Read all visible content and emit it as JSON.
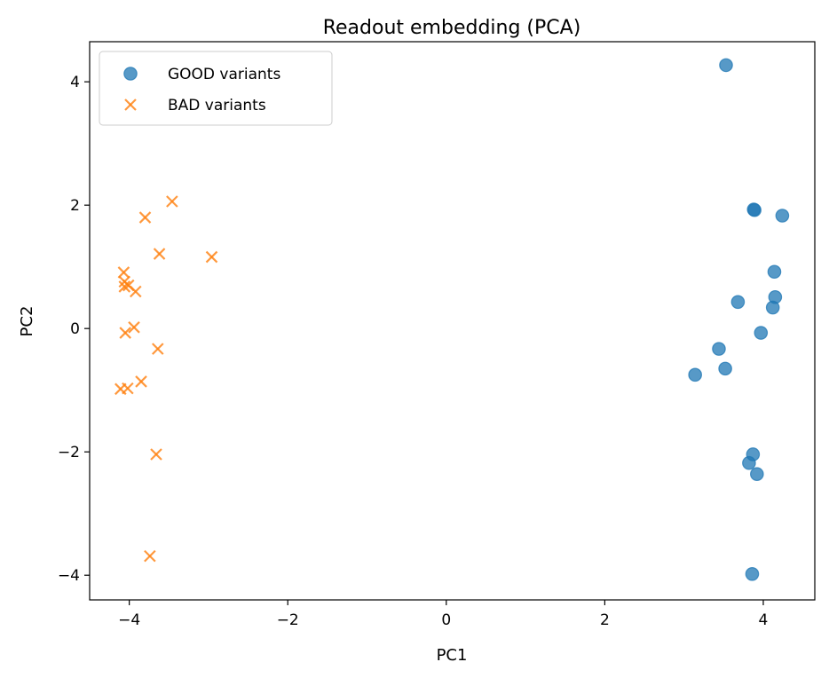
{
  "chart_data": {
    "type": "scatter",
    "title": "Readout embedding (PCA)",
    "xlabel": "PC1",
    "ylabel": "PC2",
    "xlim": [
      -4.5,
      4.65
    ],
    "ylim": [
      -4.4,
      4.65
    ],
    "xticks": [
      -4,
      -2,
      0,
      2,
      4
    ],
    "yticks": [
      -4,
      -2,
      0,
      2,
      4
    ],
    "xtick_labels": [
      "−4",
      "−2",
      "0",
      "2",
      "4"
    ],
    "ytick_labels": [
      "−4",
      "−2",
      "0",
      "2",
      "4"
    ],
    "grid": false,
    "legend_position": "top-left",
    "series": [
      {
        "name": "GOOD variants",
        "marker": "circle",
        "color": "#1f77b4",
        "points": [
          [
            3.53,
            4.27
          ],
          [
            3.88,
            1.93
          ],
          [
            3.89,
            1.92
          ],
          [
            4.24,
            1.83
          ],
          [
            4.14,
            0.92
          ],
          [
            4.15,
            0.51
          ],
          [
            3.68,
            0.43
          ],
          [
            4.12,
            0.34
          ],
          [
            3.97,
            -0.07
          ],
          [
            3.44,
            -0.33
          ],
          [
            3.52,
            -0.65
          ],
          [
            3.14,
            -0.75
          ],
          [
            3.87,
            -2.04
          ],
          [
            3.82,
            -2.18
          ],
          [
            3.92,
            -2.36
          ],
          [
            3.86,
            -3.98
          ]
        ]
      },
      {
        "name": "BAD variants",
        "marker": "x",
        "color": "#ff7f0e",
        "points": [
          [
            -3.46,
            2.06
          ],
          [
            -3.8,
            1.8
          ],
          [
            -3.62,
            1.21
          ],
          [
            -2.96,
            1.16
          ],
          [
            -4.07,
            0.91
          ],
          [
            -4.06,
            0.76
          ],
          [
            -4.06,
            0.68
          ],
          [
            -4.01,
            0.7
          ],
          [
            -3.92,
            0.6
          ],
          [
            -3.94,
            0.02
          ],
          [
            -4.05,
            -0.07
          ],
          [
            -3.64,
            -0.33
          ],
          [
            -3.85,
            -0.86
          ],
          [
            -4.02,
            -0.97
          ],
          [
            -4.11,
            -0.98
          ],
          [
            -3.66,
            -2.04
          ],
          [
            -3.74,
            -3.69
          ]
        ]
      }
    ]
  }
}
